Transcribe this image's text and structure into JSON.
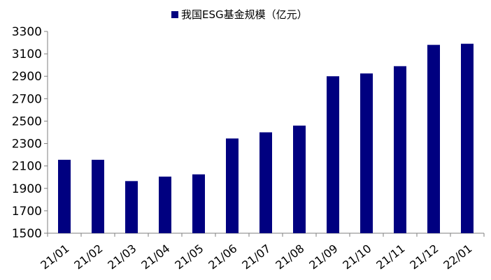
{
  "chart_data": {
    "type": "bar",
    "legend": {
      "label": "我国ESG基金规模（亿元）",
      "placement": "top-center"
    },
    "categories": [
      "21/01",
      "21/02",
      "21/03",
      "21/04",
      "21/05",
      "21/06",
      "21/07",
      "21/08",
      "21/09",
      "21/10",
      "21/11",
      "21/12",
      "22/01"
    ],
    "series": [
      {
        "name": "我国ESG基金规模（亿元）",
        "values": [
          2155,
          2155,
          1965,
          2005,
          2025,
          2345,
          2400,
          2460,
          2900,
          2925,
          2990,
          3180,
          3190
        ]
      }
    ],
    "ylim": [
      1500,
      3300
    ],
    "yticks": [
      1500,
      1700,
      1900,
      2100,
      2300,
      2500,
      2700,
      2900,
      3100,
      3300
    ],
    "grid": false,
    "colors": {
      "bar": "#000080",
      "axis": "#7f7f7f",
      "text": "#000000"
    }
  }
}
